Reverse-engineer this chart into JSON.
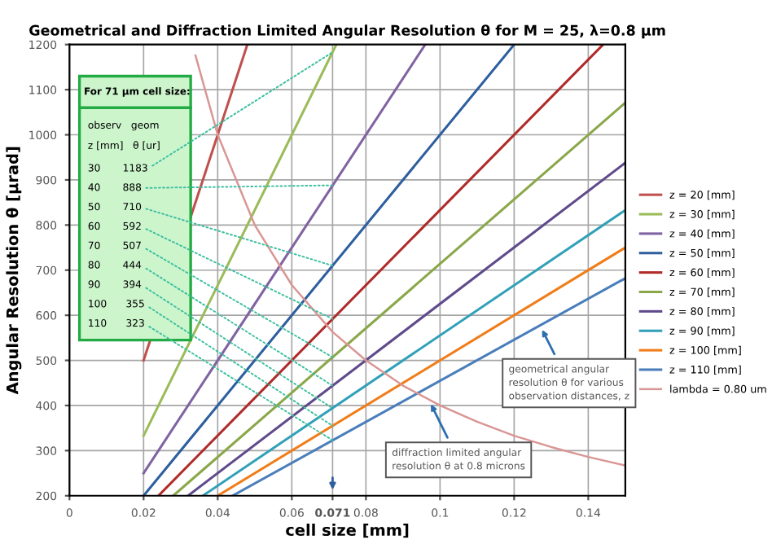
{
  "chart_data": {
    "type": "line",
    "title": "Geometrical and Diffraction Limited Angular Resolution θ for M = 25, λ=0.8 µm",
    "xlabel": "cell size [mm]",
    "ylabel": "Angular Resolution θ [µrad]",
    "xlim": [
      0,
      0.15
    ],
    "ylim": [
      200,
      1200
    ],
    "xticks": [
      0,
      0.02,
      0.04,
      0.06,
      {
        "value": 0.071,
        "label": "0.071"
      },
      0.08,
      0.1,
      0.12,
      0.14
    ],
    "yticks": [
      200,
      300,
      400,
      500,
      600,
      700,
      800,
      900,
      1000,
      1100,
      1200
    ],
    "grid": true,
    "legend": "right",
    "marker": "none",
    "line_style": "solid",
    "series": [
      {
        "name": "z = 20 [mm]",
        "color": "#c0504d",
        "x": [
          0.02,
          0.048
        ],
        "values": [
          500,
          1200
        ]
      },
      {
        "name": "z = 30 [mm]",
        "color": "#9bbb59",
        "x": [
          0.02,
          0.072
        ],
        "values": [
          333,
          1200
        ]
      },
      {
        "name": "z = 40 [mm]",
        "color": "#8064a2",
        "x": [
          0.02,
          0.096
        ],
        "values": [
          250,
          1200
        ]
      },
      {
        "name": "z = 50 [mm]",
        "color": "#2e5f9e",
        "x": [
          0.02,
          0.12
        ],
        "values": [
          200,
          1200
        ]
      },
      {
        "name": "z = 60 [mm]",
        "color": "#b02a2a",
        "x": [
          0.024,
          0.144
        ],
        "values": [
          200,
          1200
        ]
      },
      {
        "name": "z = 70 [mm]",
        "color": "#8aa84a",
        "x": [
          0.028,
          0.15
        ],
        "values": [
          200,
          1071
        ]
      },
      {
        "name": "z = 80 [mm]",
        "color": "#5f4b8b",
        "x": [
          0.032,
          0.15
        ],
        "values": [
          200,
          938
        ]
      },
      {
        "name": "z = 90 [mm]",
        "color": "#31a0b8",
        "x": [
          0.036,
          0.15
        ],
        "values": [
          200,
          833
        ]
      },
      {
        "name": "z = 100 [mm]",
        "color": "#f07d1a",
        "x": [
          0.04,
          0.15
        ],
        "values": [
          200,
          750
        ]
      },
      {
        "name": "z = 110 [mm]",
        "color": "#4a7ebb",
        "x": [
          0.044,
          0.15
        ],
        "values": [
          200,
          682
        ]
      },
      {
        "name": "lambda = 0.80 um",
        "color": "#d99694",
        "x": [
          0.034,
          0.04,
          0.05,
          0.06,
          0.071,
          0.08,
          0.09,
          0.1,
          0.11,
          0.12,
          0.13,
          0.14,
          0.15
        ],
        "values": [
          1176,
          1000,
          800,
          667,
          563,
          500,
          444,
          400,
          364,
          333,
          308,
          286,
          267
        ]
      }
    ],
    "annotations": [
      "For 71 µm cell size:",
      "observ   geom",
      "z [mm]   θ [ur]",
      {
        "text": "30       1183",
        "x": 0.071,
        "y": 1183
      },
      {
        "text": "40       888",
        "x": 0.071,
        "y": 888
      },
      {
        "text": "50       710",
        "x": 0.071,
        "y": 710
      },
      {
        "text": "60       592",
        "x": 0.071,
        "y": 592
      },
      {
        "text": "70       507",
        "x": 0.071,
        "y": 507
      },
      {
        "text": "80       444",
        "x": 0.071,
        "y": 444
      },
      {
        "text": "90       394",
        "x": 0.071,
        "y": 394
      },
      {
        "text": "100      355",
        "x": 0.071,
        "y": 355
      },
      {
        "text": "110      323",
        "x": 0.071,
        "y": 323
      },
      {
        "text": "geometrical angular resolution θ for various observation distances, z",
        "x": 0.127,
        "y": 577
      },
      {
        "text": "diffraction limited angular resolution θ at 0.8 microns",
        "x": 0.097,
        "y": 412
      }
    ]
  }
}
